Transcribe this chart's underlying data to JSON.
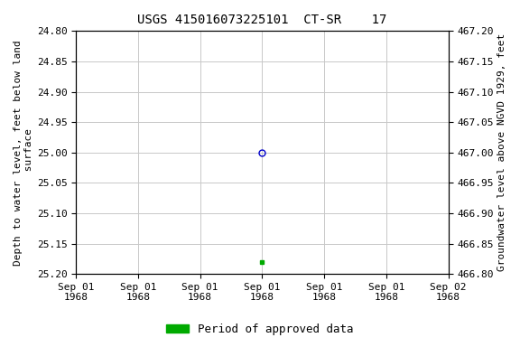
{
  "title": "USGS 415016073225101  CT-SR    17",
  "ylabel_left": "Depth to water level, feet below land\n surface",
  "ylabel_right": "Groundwater level above NGVD 1929, feet",
  "ylim_left": [
    25.2,
    24.8
  ],
  "ylim_right": [
    466.8,
    467.2
  ],
  "yticks_left": [
    24.8,
    24.85,
    24.9,
    24.95,
    25.0,
    25.05,
    25.1,
    25.15,
    25.2
  ],
  "yticks_right": [
    466.8,
    466.85,
    466.9,
    466.95,
    467.0,
    467.05,
    467.1,
    467.15,
    467.2
  ],
  "xlim": [
    0,
    6
  ],
  "xtick_positions": [
    0,
    1,
    2,
    3,
    4,
    5,
    6
  ],
  "xtick_labels": [
    "Sep 01\n1968",
    "Sep 01\n1968",
    "Sep 01\n1968",
    "Sep 01\n1968",
    "Sep 01\n1968",
    "Sep 01\n1968",
    "Sep 02\n1968"
  ],
  "data_open_x": 3,
  "data_open_y": 25.0,
  "data_filled_x": 3,
  "data_filled_y": 25.18,
  "bg_color": "#ffffff",
  "grid_color": "#c8c8c8",
  "open_marker_color": "#0000cc",
  "filled_marker_color": "#00aa00",
  "legend_label": "Period of approved data",
  "legend_color": "#00aa00",
  "title_fontsize": 10,
  "axis_label_fontsize": 8,
  "tick_fontsize": 8,
  "legend_fontsize": 9
}
